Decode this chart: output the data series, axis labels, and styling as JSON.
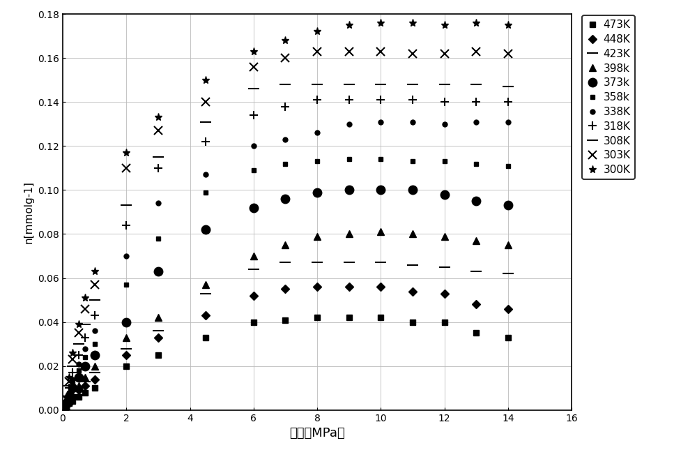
{
  "title": "",
  "xlabel": "压力（MPa）",
  "ylabel": "n[mmolg-1]",
  "xlim": [
    0,
    16
  ],
  "ylim": [
    0,
    0.18
  ],
  "yticks": [
    0,
    0.02,
    0.04,
    0.06,
    0.08,
    0.1,
    0.12,
    0.14,
    0.16,
    0.18
  ],
  "xticks": [
    0,
    2,
    4,
    6,
    8,
    10,
    12,
    14,
    16
  ],
  "series": [
    {
      "label": "473K",
      "marker": "s",
      "markersize": 6,
      "x": [
        0.05,
        0.1,
        0.2,
        0.3,
        0.5,
        0.7,
        1.0,
        2.0,
        3.0,
        4.5,
        6.0,
        7.0,
        8.0,
        9.0,
        10.0,
        11.0,
        12.0,
        13.0,
        14.0
      ],
      "y": [
        0.001,
        0.002,
        0.003,
        0.004,
        0.006,
        0.008,
        0.01,
        0.02,
        0.025,
        0.033,
        0.04,
        0.041,
        0.042,
        0.042,
        0.042,
        0.04,
        0.04,
        0.035,
        0.033
      ]
    },
    {
      "label": "448K",
      "marker": "D",
      "markersize": 6,
      "x": [
        0.05,
        0.1,
        0.2,
        0.3,
        0.5,
        0.7,
        1.0,
        2.0,
        3.0,
        4.5,
        6.0,
        7.0,
        8.0,
        9.0,
        10.0,
        11.0,
        12.0,
        13.0,
        14.0
      ],
      "y": [
        0.001,
        0.002,
        0.004,
        0.006,
        0.009,
        0.011,
        0.014,
        0.025,
        0.033,
        0.043,
        0.052,
        0.055,
        0.056,
        0.056,
        0.056,
        0.054,
        0.053,
        0.048,
        0.046
      ]
    },
    {
      "label": "423K",
      "marker": "_",
      "markersize": 12,
      "x": [
        0.05,
        0.1,
        0.2,
        0.3,
        0.5,
        0.7,
        1.0,
        2.0,
        3.0,
        4.5,
        6.0,
        7.0,
        8.0,
        9.0,
        10.0,
        11.0,
        12.0,
        13.0,
        14.0
      ],
      "y": [
        0.001,
        0.002,
        0.004,
        0.007,
        0.01,
        0.013,
        0.017,
        0.028,
        0.036,
        0.053,
        0.064,
        0.067,
        0.067,
        0.067,
        0.067,
        0.066,
        0.065,
        0.063,
        0.062
      ]
    },
    {
      "label": "398k",
      "marker": "^",
      "markersize": 7,
      "x": [
        0.05,
        0.1,
        0.2,
        0.3,
        0.5,
        0.7,
        1.0,
        2.0,
        3.0,
        4.5,
        6.0,
        7.0,
        8.0,
        9.0,
        10.0,
        11.0,
        12.0,
        13.0,
        14.0
      ],
      "y": [
        0.001,
        0.002,
        0.004,
        0.007,
        0.011,
        0.015,
        0.02,
        0.033,
        0.042,
        0.057,
        0.07,
        0.075,
        0.079,
        0.08,
        0.081,
        0.08,
        0.079,
        0.077,
        0.075
      ]
    },
    {
      "label": "373k",
      "marker": "o",
      "markersize": 9,
      "x": [
        0.05,
        0.1,
        0.2,
        0.3,
        0.5,
        0.7,
        1.0,
        2.0,
        3.0,
        4.5,
        6.0,
        7.0,
        8.0,
        9.0,
        10.0,
        11.0,
        12.0,
        13.0,
        14.0
      ],
      "y": [
        0.001,
        0.003,
        0.006,
        0.01,
        0.015,
        0.02,
        0.025,
        0.04,
        0.063,
        0.082,
        0.092,
        0.096,
        0.099,
        0.1,
        0.1,
        0.1,
        0.098,
        0.095,
        0.093
      ]
    },
    {
      "label": "358k",
      "marker": "s",
      "markersize": 4,
      "x": [
        0.05,
        0.1,
        0.2,
        0.3,
        0.5,
        0.7,
        1.0,
        2.0,
        3.0,
        4.5,
        6.0,
        7.0,
        8.0,
        9.0,
        10.0,
        11.0,
        12.0,
        13.0,
        14.0
      ],
      "y": [
        0.001,
        0.003,
        0.007,
        0.012,
        0.018,
        0.024,
        0.03,
        0.057,
        0.078,
        0.099,
        0.109,
        0.112,
        0.113,
        0.114,
        0.114,
        0.113,
        0.113,
        0.112,
        0.111
      ]
    },
    {
      "label": "338K",
      "marker": "o",
      "markersize": 5,
      "x": [
        0.05,
        0.1,
        0.2,
        0.3,
        0.5,
        0.7,
        1.0,
        2.0,
        3.0,
        4.5,
        6.0,
        7.0,
        8.0,
        9.0,
        10.0,
        11.0,
        12.0,
        13.0,
        14.0
      ],
      "y": [
        0.001,
        0.003,
        0.008,
        0.014,
        0.021,
        0.028,
        0.036,
        0.07,
        0.094,
        0.107,
        0.12,
        0.123,
        0.126,
        0.13,
        0.131,
        0.131,
        0.13,
        0.131,
        0.131
      ]
    },
    {
      "label": "318K",
      "marker": "+",
      "markersize": 9,
      "x": [
        0.05,
        0.1,
        0.2,
        0.3,
        0.5,
        0.7,
        1.0,
        2.0,
        3.0,
        4.5,
        6.0,
        7.0,
        8.0,
        9.0,
        10.0,
        11.0,
        12.0,
        13.0,
        14.0
      ],
      "y": [
        0.001,
        0.003,
        0.01,
        0.017,
        0.025,
        0.033,
        0.043,
        0.084,
        0.11,
        0.122,
        0.134,
        0.138,
        0.141,
        0.141,
        0.141,
        0.141,
        0.14,
        0.14,
        0.14
      ]
    },
    {
      "label": "308K",
      "marker": "_",
      "markersize": 12,
      "x": [
        0.05,
        0.1,
        0.2,
        0.3,
        0.5,
        0.7,
        1.0,
        2.0,
        3.0,
        4.5,
        6.0,
        7.0,
        8.0,
        9.0,
        10.0,
        11.0,
        12.0,
        13.0,
        14.0
      ],
      "y": [
        0.001,
        0.004,
        0.011,
        0.02,
        0.03,
        0.039,
        0.05,
        0.093,
        0.115,
        0.131,
        0.146,
        0.148,
        0.148,
        0.148,
        0.148,
        0.148,
        0.148,
        0.148,
        0.147
      ]
    },
    {
      "label": "303K",
      "marker": "x",
      "markersize": 9,
      "x": [
        0.05,
        0.1,
        0.2,
        0.3,
        0.5,
        0.7,
        1.0,
        2.0,
        3.0,
        4.5,
        6.0,
        7.0,
        8.0,
        9.0,
        10.0,
        11.0,
        12.0,
        13.0,
        14.0
      ],
      "y": [
        0.001,
        0.005,
        0.013,
        0.023,
        0.035,
        0.046,
        0.057,
        0.11,
        0.127,
        0.14,
        0.156,
        0.16,
        0.163,
        0.163,
        0.163,
        0.162,
        0.162,
        0.163,
        0.162
      ]
    },
    {
      "label": "300K",
      "marker": "*",
      "markersize": 8,
      "x": [
        0.05,
        0.1,
        0.2,
        0.3,
        0.5,
        0.7,
        1.0,
        2.0,
        3.0,
        4.5,
        6.0,
        7.0,
        8.0,
        9.0,
        10.0,
        11.0,
        12.0,
        13.0,
        14.0
      ],
      "y": [
        0.001,
        0.006,
        0.015,
        0.026,
        0.039,
        0.051,
        0.063,
        0.117,
        0.133,
        0.15,
        0.163,
        0.168,
        0.172,
        0.175,
        0.176,
        0.176,
        0.175,
        0.176,
        0.175
      ]
    }
  ]
}
